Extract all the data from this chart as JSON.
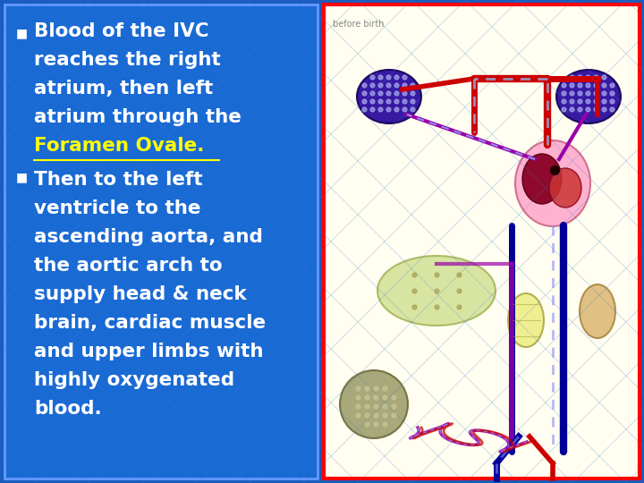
{
  "background_color": "#1a5cbf",
  "text_panel_bg": "#1a6ad4",
  "text_panel_border": "#6699ff",
  "image_panel_border": "#ff0000",
  "image_panel_bg": "#fffef0",
  "bullet1_lines": [
    "Blood of the IVC",
    "reaches the right",
    "atrium, then left",
    "atrium through the"
  ],
  "bullet1_highlight": "Foramen Ovale",
  "bullet1_end": ".",
  "bullet2_lines": [
    "Then to the left",
    "ventricle to the",
    "ascending aorta, and",
    "the aortic arch to",
    "supply head & neck",
    "brain, cardiac muscle",
    "and upper limbs with",
    "highly oxygenated",
    "blood."
  ],
  "text_color": "#ffffff",
  "highlight_color": "#ffff00",
  "bullet_color": "#ffffff",
  "image_label": "before birth",
  "font_size_main": 15.5
}
